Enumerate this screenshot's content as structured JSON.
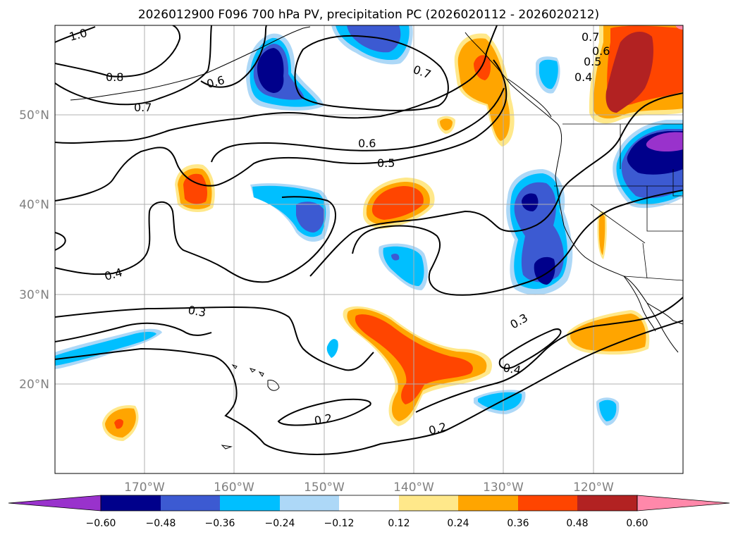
{
  "title": "2026012900 F096 700 hPa PV, precipitation PC (2026020112 - 2026020212)",
  "colors": {
    "neg_lt_060": "#9932cc",
    "neg_060_048": "#00008b",
    "neg_048_036": "#3c5ad2",
    "neg_036_024": "#00bfff",
    "neg_024_012": "#add8f7",
    "neutral": "#ffffff",
    "pos_012_024": "#ffe88a",
    "pos_024_036": "#ffa500",
    "pos_036_048": "#ff4500",
    "pos_048_060": "#b22222",
    "pos_gt_060": "#ff88aa"
  },
  "lat_labels": [
    "20°N",
    "30°N",
    "40°N",
    "50°N"
  ],
  "lon_labels": [
    "170°W",
    "160°W",
    "150°W",
    "140°W",
    "130°W",
    "120°W"
  ],
  "colorbar_ticks": [
    "−0.60",
    "−0.48",
    "−0.36",
    "−0.24",
    "−0.12",
    "0.12",
    "0.24",
    "0.36",
    "0.48",
    "0.60"
  ],
  "contour_labels": [
    "1.0",
    "0.8",
    "0.7",
    "0.6",
    "0.7",
    "0.6",
    "0.5",
    "0.7",
    "0.6",
    "0.5",
    "0.4",
    "0.4",
    "0.3",
    "0.3",
    "0.4",
    "0.2",
    "0.2"
  ]
}
